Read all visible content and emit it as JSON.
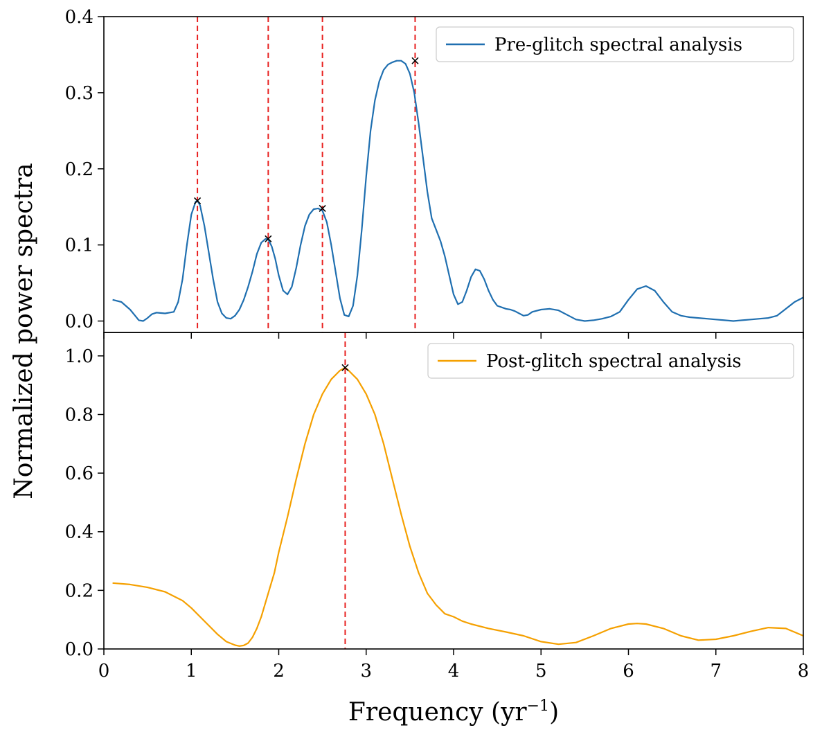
{
  "figure": {
    "ylabel": "Normalized power spectra",
    "xlabel": "Frequency (yr",
    "xlabel_sup": "−1",
    "xlabel_close": ")"
  },
  "chart_data": [
    {
      "type": "line",
      "panel": "top",
      "legend": "Pre-glitch spectral analysis",
      "legend_placement": "top-right",
      "color": "#1f6fb0",
      "xlim": [
        0,
        8
      ],
      "ylim": [
        -0.015,
        0.4
      ],
      "yticks": [
        0.0,
        0.1,
        0.2,
        0.3,
        0.4
      ],
      "ytick_labels": [
        "0.0",
        "0.1",
        "0.2",
        "0.3",
        "0.4"
      ],
      "x": [
        0.1,
        0.2,
        0.3,
        0.35,
        0.4,
        0.45,
        0.5,
        0.55,
        0.6,
        0.7,
        0.8,
        0.85,
        0.9,
        0.95,
        1.0,
        1.05,
        1.07,
        1.1,
        1.15,
        1.2,
        1.25,
        1.3,
        1.35,
        1.4,
        1.45,
        1.5,
        1.55,
        1.6,
        1.65,
        1.7,
        1.75,
        1.8,
        1.85,
        1.88,
        1.92,
        1.96,
        2.0,
        2.05,
        2.1,
        2.15,
        2.2,
        2.25,
        2.3,
        2.35,
        2.4,
        2.45,
        2.5,
        2.55,
        2.6,
        2.65,
        2.7,
        2.75,
        2.8,
        2.85,
        2.9,
        2.95,
        3.0,
        3.05,
        3.1,
        3.15,
        3.2,
        3.25,
        3.3,
        3.35,
        3.4,
        3.45,
        3.5,
        3.55,
        3.6,
        3.65,
        3.7,
        3.75,
        3.8,
        3.85,
        3.9,
        3.95,
        4.0,
        4.05,
        4.1,
        4.15,
        4.2,
        4.25,
        4.3,
        4.35,
        4.4,
        4.45,
        4.5,
        4.55,
        4.6,
        4.65,
        4.7,
        4.75,
        4.8,
        4.85,
        4.9,
        5.0,
        5.1,
        5.2,
        5.3,
        5.4,
        5.5,
        5.6,
        5.7,
        5.8,
        5.9,
        6.0,
        6.1,
        6.2,
        6.3,
        6.4,
        6.5,
        6.6,
        6.7,
        6.8,
        6.9,
        7.0,
        7.1,
        7.2,
        7.3,
        7.4,
        7.5,
        7.6,
        7.7,
        7.8,
        7.9,
        8.0
      ],
      "y": [
        0.028,
        0.025,
        0.015,
        0.008,
        0.001,
        0.0,
        0.004,
        0.009,
        0.011,
        0.01,
        0.012,
        0.025,
        0.055,
        0.1,
        0.14,
        0.157,
        0.158,
        0.152,
        0.125,
        0.09,
        0.055,
        0.025,
        0.01,
        0.004,
        0.003,
        0.007,
        0.015,
        0.028,
        0.045,
        0.065,
        0.088,
        0.103,
        0.108,
        0.107,
        0.098,
        0.082,
        0.06,
        0.04,
        0.035,
        0.045,
        0.07,
        0.1,
        0.125,
        0.14,
        0.147,
        0.148,
        0.145,
        0.13,
        0.1,
        0.065,
        0.03,
        0.008,
        0.006,
        0.02,
        0.06,
        0.12,
        0.19,
        0.25,
        0.29,
        0.315,
        0.33,
        0.337,
        0.34,
        0.342,
        0.342,
        0.338,
        0.325,
        0.3,
        0.26,
        0.215,
        0.17,
        0.135,
        0.12,
        0.105,
        0.085,
        0.06,
        0.035,
        0.022,
        0.025,
        0.04,
        0.058,
        0.068,
        0.066,
        0.055,
        0.04,
        0.028,
        0.02,
        0.018,
        0.016,
        0.015,
        0.013,
        0.01,
        0.007,
        0.008,
        0.012,
        0.015,
        0.016,
        0.014,
        0.008,
        0.002,
        0.0,
        0.001,
        0.003,
        0.006,
        0.012,
        0.028,
        0.042,
        0.046,
        0.04,
        0.025,
        0.012,
        0.007,
        0.005,
        0.004,
        0.003,
        0.002,
        0.001,
        0.0,
        0.001,
        0.002,
        0.003,
        0.004,
        0.007,
        0.016,
        0.025,
        0.031
      ],
      "peaks_x": [
        1.07,
        1.88,
        2.5,
        3.56
      ],
      "peaks_y": [
        0.158,
        0.108,
        0.148,
        0.342
      ],
      "vlines": [
        1.07,
        1.88,
        2.5,
        3.56
      ],
      "vline_color": "#e8201f"
    },
    {
      "type": "line",
      "panel": "bottom",
      "legend": "Post-glitch spectral analysis",
      "legend_placement": "top-right",
      "color": "#f5a000",
      "xlim": [
        0,
        8
      ],
      "ylim": [
        0.0,
        1.08
      ],
      "yticks": [
        0.0,
        0.2,
        0.4,
        0.6,
        0.8,
        1.0
      ],
      "ytick_labels": [
        "0.0",
        "0.2",
        "0.4",
        "0.6",
        "0.8",
        "1.0"
      ],
      "xticks": [
        0,
        1,
        2,
        3,
        4,
        5,
        6,
        7,
        8
      ],
      "xtick_labels": [
        "0",
        "1",
        "2",
        "3",
        "4",
        "5",
        "6",
        "7",
        "8"
      ],
      "x": [
        0.1,
        0.3,
        0.5,
        0.7,
        0.9,
        1.0,
        1.1,
        1.2,
        1.3,
        1.4,
        1.5,
        1.55,
        1.6,
        1.65,
        1.7,
        1.75,
        1.8,
        1.85,
        1.9,
        1.95,
        2.0,
        2.1,
        2.2,
        2.3,
        2.4,
        2.5,
        2.6,
        2.7,
        2.76,
        2.8,
        2.9,
        3.0,
        3.1,
        3.2,
        3.3,
        3.4,
        3.5,
        3.6,
        3.7,
        3.8,
        3.9,
        4.0,
        4.1,
        4.2,
        4.4,
        4.6,
        4.8,
        5.0,
        5.2,
        5.4,
        5.6,
        5.8,
        6.0,
        6.1,
        6.2,
        6.4,
        6.6,
        6.8,
        7.0,
        7.2,
        7.4,
        7.6,
        7.8,
        8.0
      ],
      "y": [
        0.225,
        0.22,
        0.21,
        0.195,
        0.165,
        0.14,
        0.11,
        0.08,
        0.05,
        0.025,
        0.013,
        0.01,
        0.012,
        0.02,
        0.04,
        0.07,
        0.11,
        0.16,
        0.21,
        0.26,
        0.33,
        0.45,
        0.58,
        0.7,
        0.8,
        0.87,
        0.92,
        0.95,
        0.96,
        0.95,
        0.92,
        0.87,
        0.8,
        0.7,
        0.58,
        0.46,
        0.35,
        0.26,
        0.19,
        0.15,
        0.12,
        0.11,
        0.095,
        0.085,
        0.07,
        0.058,
        0.045,
        0.025,
        0.016,
        0.022,
        0.045,
        0.07,
        0.085,
        0.087,
        0.085,
        0.07,
        0.045,
        0.03,
        0.033,
        0.045,
        0.06,
        0.073,
        0.07,
        0.045
      ],
      "peaks_x": [
        2.76
      ],
      "peaks_y": [
        0.96
      ],
      "vlines": [
        2.76
      ],
      "vline_color": "#e8201f"
    }
  ]
}
